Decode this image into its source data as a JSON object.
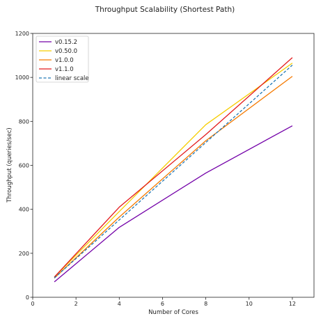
{
  "chart_data": {
    "type": "line",
    "title": "Throughput Scalability (Shortest Path)",
    "xlabel": "Number of Cores",
    "ylabel": "Throughput (queries/sec)",
    "xlim": [
      0,
      13
    ],
    "ylim": [
      0,
      1200
    ],
    "xticks": [
      0,
      2,
      4,
      6,
      8,
      10,
      12
    ],
    "yticks": [
      0,
      200,
      400,
      600,
      800,
      1000,
      1200
    ],
    "grid": false,
    "legend_position": "top-left",
    "x": [
      1,
      4,
      8,
      12
    ],
    "series": [
      {
        "name": "v0.15.2",
        "values": [
          70,
          318,
          565,
          780
        ],
        "color": "#7300a8",
        "dash": "solid"
      },
      {
        "name": "v0.50.0",
        "values": [
          92,
          390,
          785,
          1065
        ],
        "color": "#f6cd00",
        "dash": "solid"
      },
      {
        "name": "v1.0.0",
        "values": [
          87,
          365,
          712,
          1005
        ],
        "color": "#f57a00",
        "dash": "solid"
      },
      {
        "name": "v1.1.0",
        "values": [
          92,
          410,
          740,
          1090
        ],
        "color": "#e31a1c",
        "dash": "solid"
      },
      {
        "name": "linear scale",
        "values": [
          88,
          352,
          704,
          1056
        ],
        "color": "#1f77b4",
        "dash": "dashed"
      }
    ]
  }
}
